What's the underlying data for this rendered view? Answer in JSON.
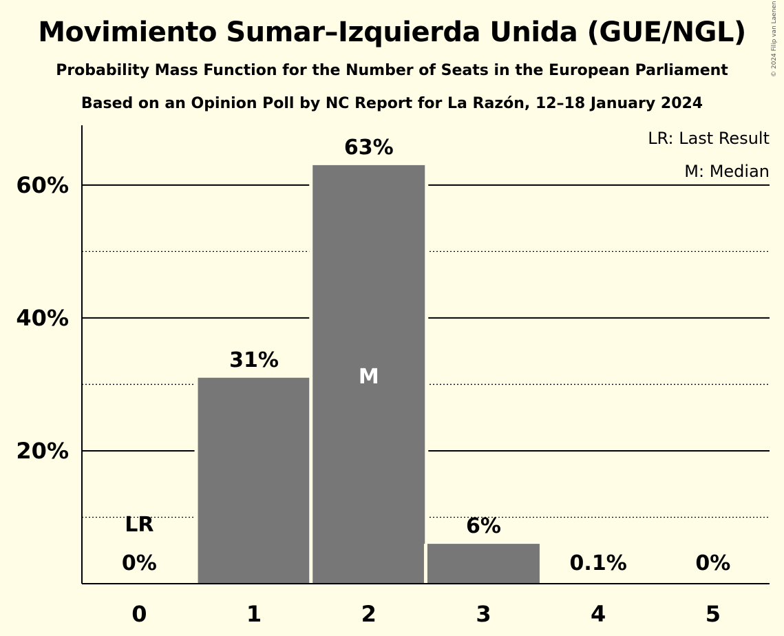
{
  "title": "Movimiento Sumar–Izquierda Unida (GUE/NGL)",
  "subtitle": "Probability Mass Function for the Number of Seats in the European Parliament",
  "subtitle2": "Based on an Opinion Poll by NC Report for La Razón, 12–18 January 2024",
  "copyright": "© 2024 Filip van Laenen",
  "legend": {
    "lr": "LR: Last Result",
    "median": "M: Median"
  },
  "colors": {
    "background": "#fffde6",
    "bar": "#777777",
    "median_marker": "#ffffff"
  },
  "chart_data": {
    "type": "bar",
    "categories": [
      "0",
      "1",
      "2",
      "3",
      "4",
      "5"
    ],
    "values": [
      0,
      31,
      63,
      6,
      0.1,
      0
    ],
    "data_labels": [
      "0%",
      "31%",
      "63%",
      "6%",
      "0.1%",
      "0%"
    ],
    "ylim": [
      0,
      69
    ],
    "yticks": [
      {
        "value": 20,
        "label": "20%"
      },
      {
        "value": 40,
        "label": "40%"
      },
      {
        "value": 60,
        "label": "60%"
      }
    ],
    "minor_gridlines": [
      10,
      30,
      50
    ],
    "last_result_category": "0",
    "last_result_label": "LR",
    "median_category": "2",
    "median_label": "M",
    "legend_position": "top-right"
  }
}
